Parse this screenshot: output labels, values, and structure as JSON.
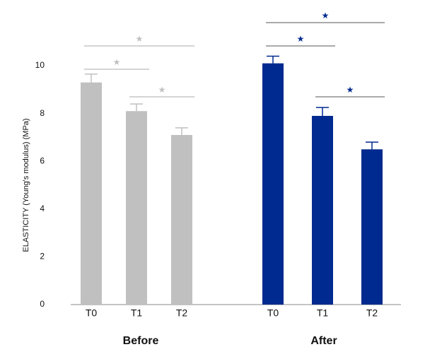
{
  "chart_data": {
    "type": "bar",
    "y_label": "ELASTICITY (Young's modulus) (MPa)",
    "categories": [
      "T0",
      "T1",
      "T2"
    ],
    "ylim": [
      0,
      12
    ],
    "yticks": [
      0,
      2,
      4,
      6,
      8,
      10
    ],
    "series": [
      {
        "name": "Before",
        "color": "#c0c0c0",
        "values": [
          9.3,
          8.1,
          7.1
        ],
        "errors": [
          0.35,
          0.3,
          0.3
        ],
        "significance": [
          {
            "pair": [
              0,
              2
            ],
            "label": "★"
          },
          {
            "pair": [
              0,
              1
            ],
            "label": "★"
          },
          {
            "pair": [
              1,
              2
            ],
            "label": "★"
          }
        ]
      },
      {
        "name": "After",
        "color": "#002a8f",
        "values": [
          10.1,
          7.9,
          6.5
        ],
        "errors": [
          0.3,
          0.35,
          0.3
        ],
        "significance": [
          {
            "pair": [
              0,
              2
            ],
            "label": "★"
          },
          {
            "pair": [
              0,
              1
            ],
            "label": "★"
          },
          {
            "pair": [
              1,
              2
            ],
            "label": "★"
          }
        ]
      }
    ]
  }
}
